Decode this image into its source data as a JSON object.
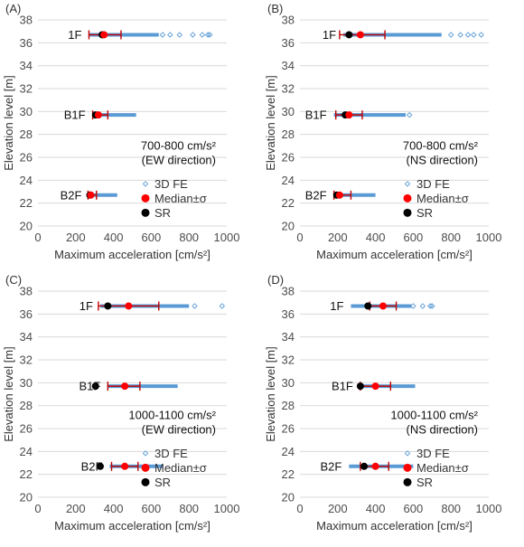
{
  "colors": {
    "fe": "#5b9bd5",
    "median": "#ff0000",
    "sd_bar": "#c00000",
    "sr": "#000000",
    "grid": "#d9d9d9",
    "axis_text": "#4d4d4d"
  },
  "legend_labels": {
    "fe": "3D FE",
    "median": "Median±σ",
    "sr": "SR"
  },
  "chart_data": [
    {
      "type": "scatter",
      "panel_label": "(A)",
      "xlabel": "Maximum acceleration [cm/s²]",
      "ylabel": "Elevation level [m]",
      "xlim": [
        0,
        1000
      ],
      "ylim": [
        20,
        38
      ],
      "xticks": [
        0,
        200,
        400,
        600,
        800,
        1000
      ],
      "yticks": [
        20,
        22,
        24,
        26,
        28,
        30,
        32,
        34,
        36,
        38
      ],
      "grid": "horizontal",
      "annotation": [
        "700-800 cm/s²",
        "(EW direction)"
      ],
      "floors": [
        {
          "name": "1F",
          "elevation": 36.7,
          "fe_min": 270,
          "fe_max": 640,
          "fe_outliers": [
            660,
            700,
            750,
            820,
            870,
            900,
            910
          ],
          "median": 350,
          "sd_low": 270,
          "sd_high": 440,
          "sr": 340
        },
        {
          "name": "B1F",
          "elevation": 29.7,
          "fe_min": 290,
          "fe_max": 520,
          "fe_outliers": [],
          "median": 320,
          "sd_low": 290,
          "sd_high": 370,
          "sr": 305
        },
        {
          "name": "B2F",
          "elevation": 22.7,
          "fe_min": 270,
          "fe_max": 420,
          "fe_outliers": [],
          "median": 280,
          "sd_low": 265,
          "sd_high": 310,
          "sr": 275
        }
      ]
    },
    {
      "type": "scatter",
      "panel_label": "(B)",
      "xlabel": "Maximum acceleration [cm/s²]",
      "ylabel": "Elevation level [m]",
      "xlim": [
        0,
        1000
      ],
      "ylim": [
        20,
        38
      ],
      "xticks": [
        0,
        200,
        400,
        600,
        800,
        1000
      ],
      "yticks": [
        20,
        22,
        24,
        26,
        28,
        30,
        32,
        34,
        36,
        38
      ],
      "grid": "horizontal",
      "annotation": [
        "700-800 cm/s²",
        "(NS direction)"
      ],
      "floors": [
        {
          "name": "1F",
          "elevation": 36.7,
          "fe_min": 230,
          "fe_max": 750,
          "fe_outliers": [
            800,
            850,
            890,
            920,
            960
          ],
          "median": 320,
          "sd_low": 210,
          "sd_high": 450,
          "sr": 260
        },
        {
          "name": "B1F",
          "elevation": 29.7,
          "fe_min": 180,
          "fe_max": 560,
          "fe_outliers": [
            580
          ],
          "median": 260,
          "sd_low": 190,
          "sd_high": 330,
          "sr": 240
        },
        {
          "name": "B2F",
          "elevation": 22.7,
          "fe_min": 180,
          "fe_max": 400,
          "fe_outliers": [],
          "median": 210,
          "sd_low": 180,
          "sd_high": 270,
          "sr": 195
        }
      ]
    },
    {
      "type": "scatter",
      "panel_label": "(C)",
      "xlabel": "Maximum acceleration [cm/s²]",
      "ylabel": "Elevation level [m]",
      "xlim": [
        0,
        1000
      ],
      "ylim": [
        20,
        38
      ],
      "xticks": [
        0,
        200,
        400,
        600,
        800,
        1000
      ],
      "yticks": [
        20,
        22,
        24,
        26,
        28,
        30,
        32,
        34,
        36,
        38
      ],
      "grid": "horizontal",
      "annotation": [
        "1000-1100 cm/s²",
        "(EW direction)"
      ],
      "floors": [
        {
          "name": "1F",
          "elevation": 36.7,
          "fe_min": 330,
          "fe_max": 800,
          "fe_outliers": [
            830,
            975
          ],
          "median": 480,
          "sd_low": 320,
          "sd_high": 640,
          "sr": 370
        },
        {
          "name": "B1F",
          "elevation": 29.7,
          "fe_min": 370,
          "fe_max": 740,
          "fe_outliers": [],
          "median": 460,
          "sd_low": 370,
          "sd_high": 540,
          "sr": 305
        },
        {
          "name": "B2F",
          "elevation": 22.7,
          "fe_min": 380,
          "fe_max": 660,
          "fe_outliers": [],
          "median": 460,
          "sd_low": 390,
          "sd_high": 530,
          "sr": 330
        }
      ]
    },
    {
      "type": "scatter",
      "panel_label": "(D)",
      "xlabel": "Maximum acceleration [cm/s²]",
      "ylabel": "Elevation level [m]",
      "xlim": [
        0,
        1000
      ],
      "ylim": [
        20,
        38
      ],
      "xticks": [
        0,
        200,
        400,
        600,
        800,
        1000
      ],
      "yticks": [
        20,
        22,
        24,
        26,
        28,
        30,
        32,
        34,
        36,
        38
      ],
      "grid": "horizontal",
      "annotation": [
        "1000-1100 cm/s²",
        "(NS direction)"
      ],
      "floors": [
        {
          "name": "1F",
          "elevation": 36.7,
          "fe_min": 270,
          "fe_max": 590,
          "fe_outliers": [
            600,
            650,
            690,
            700
          ],
          "median": 440,
          "sd_low": 370,
          "sd_high": 510,
          "sr": 360
        },
        {
          "name": "B1F",
          "elevation": 29.7,
          "fe_min": 320,
          "fe_max": 610,
          "fe_outliers": [],
          "median": 400,
          "sd_low": 320,
          "sd_high": 480,
          "sr": 320
        },
        {
          "name": "B2F",
          "elevation": 22.7,
          "fe_min": 260,
          "fe_max": 600,
          "fe_outliers": [],
          "median": 400,
          "sd_low": 320,
          "sd_high": 470,
          "sr": 340
        }
      ]
    }
  ]
}
